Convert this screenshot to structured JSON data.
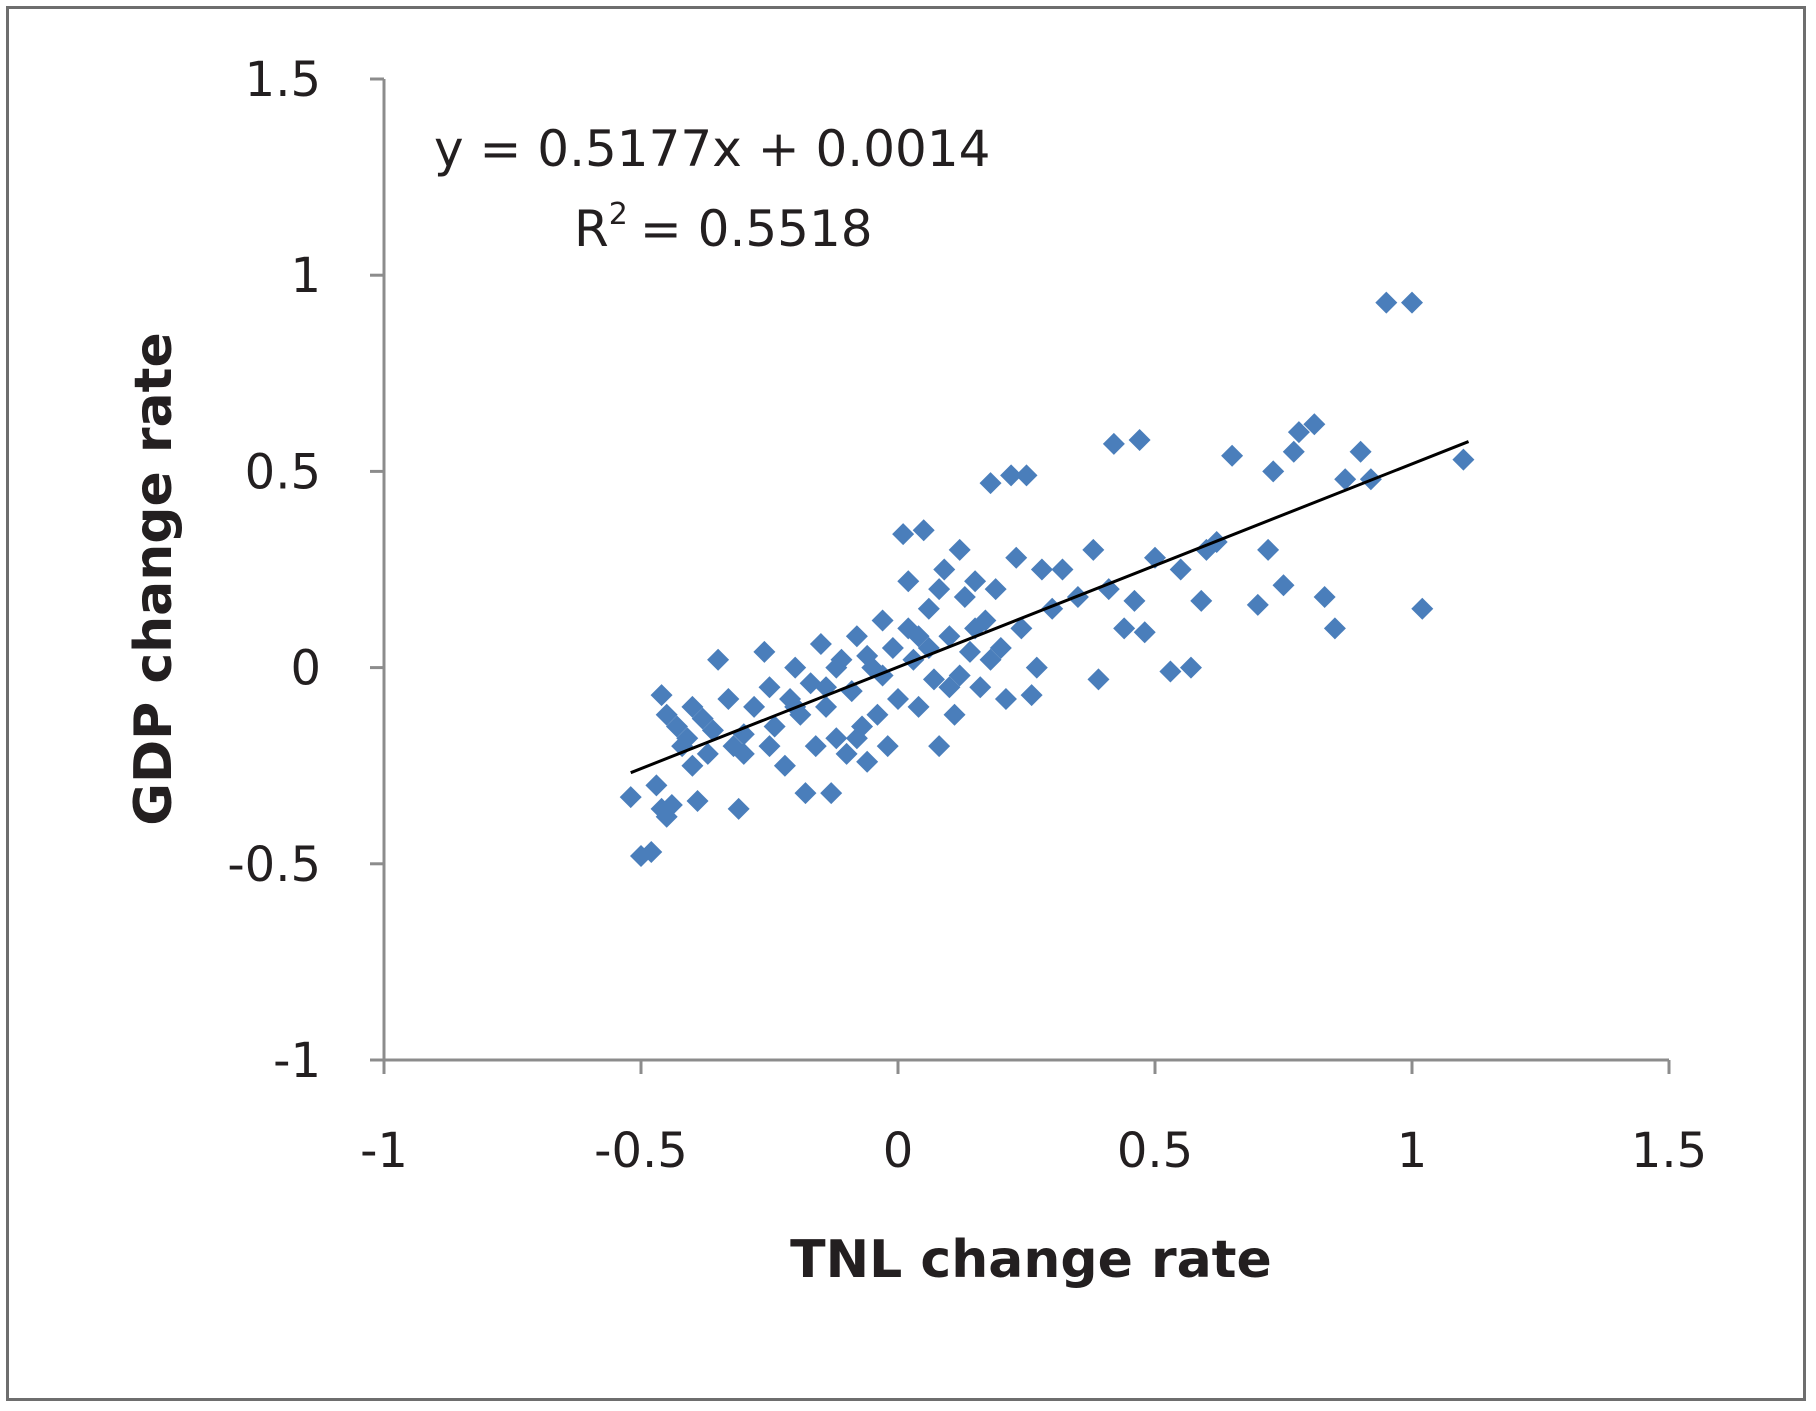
{
  "chart_data": {
    "type": "scatter",
    "title": "",
    "xlabel": "TNL change rate",
    "ylabel": "GDP change rate",
    "xlim": [
      -1,
      1.5
    ],
    "ylim": [
      -1,
      1.5
    ],
    "x_ticks": [
      "-1",
      "-0.5",
      "0",
      "0.5",
      "1",
      "1.5"
    ],
    "y_ticks": [
      "1.5",
      "1",
      "0.5",
      "0",
      "-0.5",
      "-1"
    ],
    "x_tick_values": [
      -1,
      -0.5,
      0,
      0.5,
      1,
      1.5
    ],
    "y_tick_values": [
      1.5,
      1,
      0.5,
      0,
      -0.5,
      -1
    ],
    "grid": false,
    "marker_color": "#4a7ebb",
    "trendline_color": "#000000",
    "trendline": {
      "slope": 0.5177,
      "intercept": 0.0014,
      "x_range": [
        -0.52,
        1.11
      ]
    },
    "equation": "y = 0.5177x + 0.0014",
    "r_squared_label": "R",
    "r_squared_exp": "2",
    "r_squared_value": "= 0.5518",
    "points": [
      [
        -0.52,
        -0.33
      ],
      [
        -0.5,
        -0.48
      ],
      [
        -0.48,
        -0.47
      ],
      [
        -0.47,
        -0.3
      ],
      [
        -0.46,
        -0.36
      ],
      [
        -0.45,
        -0.38
      ],
      [
        -0.44,
        -0.35
      ],
      [
        -0.42,
        -0.2
      ],
      [
        -0.4,
        -0.25
      ],
      [
        -0.39,
        -0.34
      ],
      [
        -0.46,
        -0.07
      ],
      [
        -0.45,
        -0.12
      ],
      [
        -0.43,
        -0.15
      ],
      [
        -0.41,
        -0.18
      ],
      [
        -0.38,
        -0.13
      ],
      [
        -0.36,
        -0.16
      ],
      [
        -0.35,
        0.02
      ],
      [
        -0.33,
        -0.08
      ],
      [
        -0.32,
        -0.2
      ],
      [
        -0.31,
        -0.36
      ],
      [
        -0.3,
        -0.22
      ],
      [
        -0.28,
        -0.1
      ],
      [
        -0.26,
        0.04
      ],
      [
        -0.25,
        -0.2
      ],
      [
        -0.24,
        -0.15
      ],
      [
        -0.22,
        -0.25
      ],
      [
        -0.21,
        -0.08
      ],
      [
        -0.2,
        0.0
      ],
      [
        -0.19,
        -0.12
      ],
      [
        -0.18,
        -0.32
      ],
      [
        -0.17,
        -0.04
      ],
      [
        -0.16,
        -0.2
      ],
      [
        -0.15,
        0.06
      ],
      [
        -0.14,
        -0.1
      ],
      [
        -0.13,
        -0.32
      ],
      [
        -0.12,
        -0.18
      ],
      [
        -0.11,
        0.02
      ],
      [
        -0.1,
        -0.22
      ],
      [
        -0.09,
        -0.06
      ],
      [
        -0.08,
        0.08
      ],
      [
        -0.07,
        -0.15
      ],
      [
        -0.06,
        -0.24
      ],
      [
        -0.05,
        0.0
      ],
      [
        -0.04,
        -0.12
      ],
      [
        -0.03,
        0.12
      ],
      [
        -0.02,
        -0.2
      ],
      [
        -0.01,
        0.05
      ],
      [
        0.0,
        -0.08
      ],
      [
        0.01,
        0.34
      ],
      [
        0.02,
        0.22
      ],
      [
        0.03,
        0.02
      ],
      [
        0.04,
        -0.1
      ],
      [
        0.05,
        0.35
      ],
      [
        0.06,
        0.15
      ],
      [
        0.07,
        -0.03
      ],
      [
        0.08,
        -0.2
      ],
      [
        0.09,
        0.25
      ],
      [
        0.1,
        0.08
      ],
      [
        0.11,
        -0.12
      ],
      [
        0.12,
        0.3
      ],
      [
        0.13,
        0.18
      ],
      [
        0.14,
        0.04
      ],
      [
        0.15,
        0.22
      ],
      [
        0.16,
        -0.05
      ],
      [
        0.17,
        0.12
      ],
      [
        0.18,
        0.47
      ],
      [
        0.19,
        0.2
      ],
      [
        0.2,
        0.05
      ],
      [
        0.21,
        -0.08
      ],
      [
        0.22,
        0.49
      ],
      [
        0.23,
        0.28
      ],
      [
        0.24,
        0.1
      ],
      [
        0.25,
        0.49
      ],
      [
        0.26,
        -0.07
      ],
      [
        0.27,
        0.0
      ],
      [
        0.28,
        0.25
      ],
      [
        0.3,
        0.15
      ],
      [
        0.32,
        0.25
      ],
      [
        0.35,
        0.18
      ],
      [
        0.38,
        0.3
      ],
      [
        0.39,
        -0.03
      ],
      [
        0.41,
        0.2
      ],
      [
        0.42,
        0.57
      ],
      [
        0.44,
        0.1
      ],
      [
        0.46,
        0.17
      ],
      [
        0.47,
        0.58
      ],
      [
        0.48,
        0.09
      ],
      [
        0.5,
        0.28
      ],
      [
        0.53,
        -0.01
      ],
      [
        0.55,
        0.25
      ],
      [
        0.57,
        0.0
      ],
      [
        0.59,
        0.17
      ],
      [
        0.6,
        0.3
      ],
      [
        0.62,
        0.32
      ],
      [
        0.65,
        0.54
      ],
      [
        0.7,
        0.16
      ],
      [
        0.72,
        0.3
      ],
      [
        0.73,
        0.5
      ],
      [
        0.75,
        0.21
      ],
      [
        0.77,
        0.55
      ],
      [
        0.78,
        0.6
      ],
      [
        0.81,
        0.62
      ],
      [
        0.83,
        0.18
      ],
      [
        0.85,
        0.1
      ],
      [
        0.87,
        0.48
      ],
      [
        0.9,
        0.55
      ],
      [
        0.92,
        0.48
      ],
      [
        0.95,
        0.93
      ],
      [
        1.0,
        0.93
      ],
      [
        1.02,
        0.15
      ],
      [
        1.1,
        0.53
      ],
      [
        -0.06,
        0.03
      ],
      [
        -0.03,
        -0.02
      ],
      [
        0.02,
        0.1
      ],
      [
        0.06,
        0.05
      ],
      [
        -0.12,
        0.0
      ],
      [
        -0.14,
        -0.05
      ],
      [
        0.08,
        0.2
      ],
      [
        0.12,
        -0.02
      ],
      [
        0.15,
        0.1
      ],
      [
        -0.2,
        -0.1
      ],
      [
        -0.25,
        -0.05
      ],
      [
        -0.3,
        -0.17
      ],
      [
        -0.37,
        -0.22
      ],
      [
        -0.4,
        -0.1
      ],
      [
        0.18,
        0.02
      ],
      [
        -0.08,
        -0.18
      ],
      [
        0.04,
        0.08
      ],
      [
        0.1,
        -0.05
      ]
    ]
  }
}
